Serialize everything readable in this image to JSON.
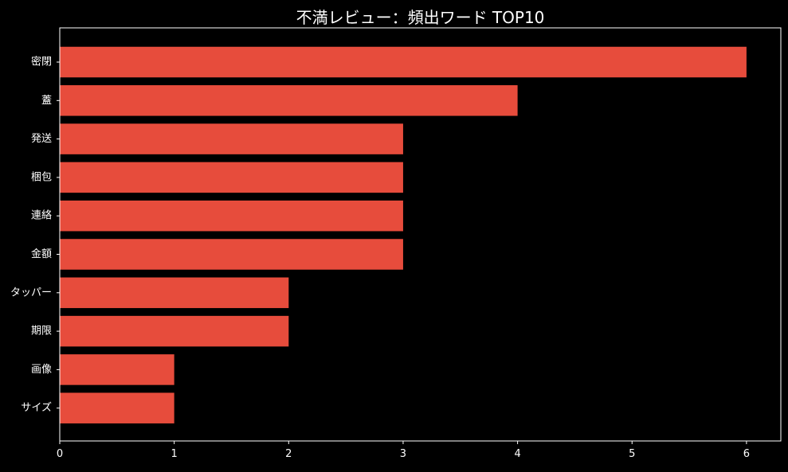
{
  "chart_data": {
    "type": "bar",
    "orientation": "horizontal",
    "title": "不満レビュー：頻出ワード TOP10",
    "xlabel": "",
    "ylabel": "",
    "categories": [
      "密閉",
      "蓋",
      "発送",
      "梱包",
      "連絡",
      "金額",
      "タッパー",
      "期限",
      "画像",
      "サイズ"
    ],
    "values": [
      6,
      4,
      3,
      3,
      3,
      3,
      2,
      2,
      1,
      1
    ],
    "xlim": [
      0,
      6.3
    ],
    "xticks": [
      0,
      1,
      2,
      3,
      4,
      5,
      6
    ],
    "grid": false,
    "colors": {
      "bar": "#e74c3c",
      "background": "#000000",
      "text": "#ffffff",
      "axis": "#ffffff"
    }
  }
}
